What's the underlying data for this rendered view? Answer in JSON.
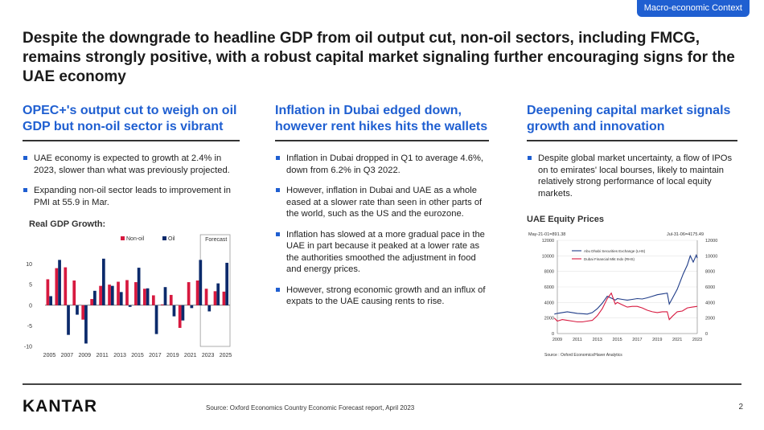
{
  "tag": "Macro-economic Context",
  "headline": "Despite the downgrade to headline GDP from oil output cut, non-oil sectors, including FMCG, remains strongly positive, with a robust capital market signaling further encouraging signs for the UAE economy",
  "columns": [
    {
      "heading": "OPEC+'s output cut to weigh on oil GDP but non-oil sector is vibrant",
      "bullets": [
        "UAE economy is expected to growth at 2.4% in 2023, slower than what was previously projected.",
        "Expanding non-oil sector leads to improvement in PMI at 55.9 in Mar."
      ]
    },
    {
      "heading": "Inflation in Dubai edged down, however rent hikes hits the wallets",
      "bullets": [
        "Inflation in Dubai dropped in Q1 to average 4.6%, down from 6.2% in Q3 2022.",
        "However, inflation in Dubai and UAE as a whole eased at a slower rate than seen in other parts of the world, such as the US and the eurozone.",
        "Inflation has slowed at a more gradual pace in the UAE in part because it peaked at a lower rate as the authorities smoothed the adjustment in food and energy prices.",
        "However, strong economic growth and an influx of expats to the UAE causing rents to rise."
      ]
    },
    {
      "heading": "Deepening capital market signals growth and innovation",
      "bullets": [
        "Despite global market uncertainty, a flow of IPOs on to emirates' local bourses, likely to maintain relatively strong performance of local equity markets."
      ]
    }
  ],
  "chart_data": [
    {
      "type": "bar",
      "title": "Real GDP Growth:",
      "forecast_label": "Forecast",
      "forecast_from": 2023,
      "categories": [
        "2005",
        "2006",
        "2007",
        "2008",
        "2009",
        "2010",
        "2011",
        "2012",
        "2013",
        "2014",
        "2015",
        "2016",
        "2017",
        "2018",
        "2019",
        "2020",
        "2021",
        "2022",
        "2023",
        "2024",
        "2025"
      ],
      "x_tick_labels": [
        "2005",
        "2007",
        "2009",
        "2011",
        "2013",
        "2015",
        "2017",
        "2019",
        "2021",
        "2023",
        "2025"
      ],
      "series": [
        {
          "name": "Non-oil",
          "color": "#d7193f",
          "values": [
            6.3,
            9.0,
            9.2,
            6.0,
            -3.5,
            1.5,
            4.7,
            5.0,
            5.7,
            6.1,
            5.6,
            4.0,
            2.4,
            0.2,
            2.5,
            -5.5,
            5.6,
            6.0,
            4.0,
            3.4,
            3.3
          ]
        },
        {
          "name": "Oil",
          "color": "#0b2a6b",
          "values": [
            2.2,
            11.0,
            -7.2,
            -2.3,
            -9.3,
            3.5,
            11.3,
            4.7,
            3.2,
            -0.4,
            9.1,
            4.1,
            -7.0,
            4.4,
            -2.7,
            -3.7,
            -0.7,
            11.0,
            -1.5,
            5.3,
            10.3
          ]
        }
      ],
      "ylim": [
        -10,
        14
      ],
      "y_ticks": [
        -10,
        -5,
        0,
        5,
        10
      ]
    },
    {
      "type": "line",
      "title": "UAE Equity Prices",
      "note_left": "May-21-01=891.38",
      "note_right": "Jul-31-06=4175.49",
      "source": "Source : Oxford Economics/Haver Analytics",
      "x_tick_labels": [
        "2009",
        "2011",
        "2013",
        "2015",
        "2017",
        "2019",
        "2021",
        "2023"
      ],
      "xlim": [
        2009,
        2023
      ],
      "ylim_left": [
        0,
        12000
      ],
      "ylim_right": [
        0,
        12000
      ],
      "y_ticks": [
        0,
        2000,
        4000,
        6000,
        8000,
        10000,
        12000
      ],
      "series": [
        {
          "name": "Abu Dhabi Securities Exchange (LHS)",
          "color": "#1f3c88",
          "x": [
            2008.7,
            2009.0,
            2009.5,
            2010.0,
            2010.5,
            2011.0,
            2011.5,
            2012.0,
            2012.5,
            2013.0,
            2013.5,
            2014.0,
            2014.5,
            2014.8,
            2015.0,
            2015.5,
            2016.0,
            2016.5,
            2017.0,
            2017.5,
            2018.0,
            2018.5,
            2019.0,
            2019.5,
            2020.0,
            2020.2,
            2020.5,
            2021.0,
            2021.3,
            2021.6,
            2022.0,
            2022.3,
            2022.6,
            2022.9,
            2023.0
          ],
          "values": [
            2500,
            2600,
            2700,
            2800,
            2700,
            2600,
            2550,
            2500,
            2700,
            3200,
            3900,
            4800,
            4500,
            4300,
            4500,
            4400,
            4300,
            4400,
            4500,
            4450,
            4600,
            4800,
            5000,
            5100,
            5200,
            3800,
            4500,
            5700,
            6700,
            7700,
            8800,
            10000,
            9200,
            10100,
            9700
          ]
        },
        {
          "name": "Dubai Financial Mkt Indx (RHS)",
          "color": "#d7193f",
          "x": [
            2008.7,
            2009.0,
            2009.5,
            2010.0,
            2010.5,
            2011.0,
            2011.5,
            2012.0,
            2012.5,
            2013.0,
            2013.5,
            2014.0,
            2014.4,
            2014.8,
            2015.0,
            2015.5,
            2016.0,
            2016.5,
            2017.0,
            2017.5,
            2018.0,
            2018.5,
            2019.0,
            2019.5,
            2020.0,
            2020.2,
            2020.5,
            2021.0,
            2021.5,
            2022.0,
            2022.5,
            2023.0
          ],
          "values": [
            2000,
            1600,
            1800,
            1700,
            1600,
            1500,
            1500,
            1600,
            1700,
            2300,
            3200,
            4500,
            5200,
            3800,
            4000,
            3700,
            3400,
            3500,
            3500,
            3300,
            3000,
            2800,
            2700,
            2800,
            2800,
            1800,
            2200,
            2800,
            2900,
            3300,
            3400,
            3500
          ]
        }
      ]
    }
  ],
  "footer": {
    "logo": "KANTAR",
    "source": "Source: Oxford Economics Country Economic Forecast  report, April 2023",
    "page": "2"
  }
}
